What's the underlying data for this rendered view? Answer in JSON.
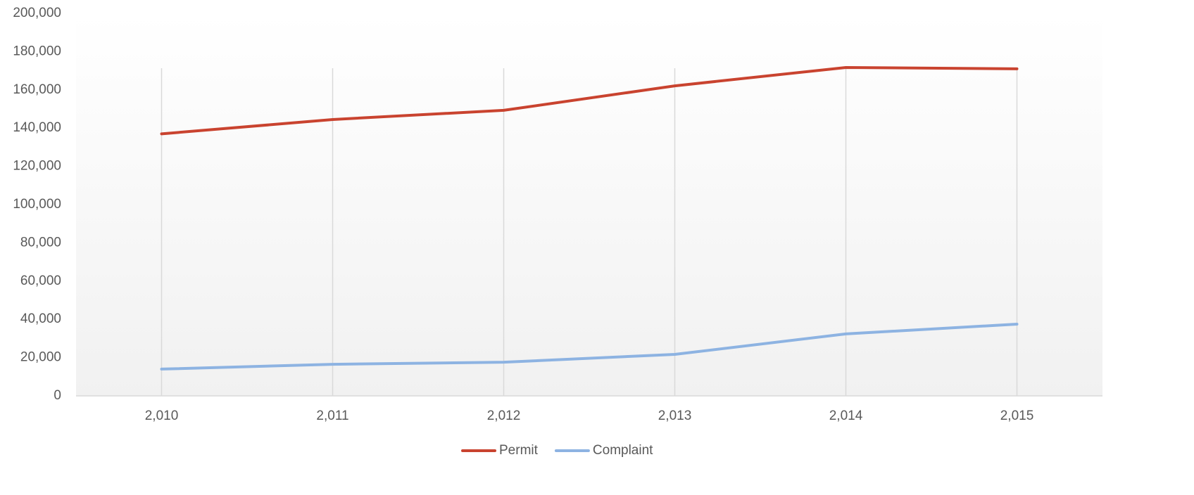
{
  "chart_data": {
    "type": "line",
    "categories": [
      "2,010",
      "2,011",
      "2,012",
      "2,013",
      "2,014",
      "2,015"
    ],
    "series": [
      {
        "name": "Permit",
        "color": "#c9432f",
        "values": [
          137000,
          144500,
          149300,
          162100,
          171700,
          171000
        ]
      },
      {
        "name": "Complaint",
        "color": "#8db3e2",
        "values": [
          14000,
          16500,
          17600,
          21700,
          32400,
          37500
        ]
      }
    ],
    "ylim": [
      0,
      200000
    ],
    "yticks": [
      0,
      {
        "value": 20000,
        "label": "20,000"
      },
      {
        "value": 40000,
        "label": "40,000"
      },
      {
        "value": 60000,
        "label": "60,000"
      },
      {
        "value": 80000,
        "label": "80,000"
      },
      {
        "value": 100000,
        "label": "100,000"
      },
      {
        "value": 120000,
        "label": "120,000"
      },
      {
        "value": 140000,
        "label": "140,000"
      },
      {
        "value": 160000,
        "label": "160,000"
      },
      {
        "value": 180000,
        "label": "180,000"
      },
      {
        "value": 200000,
        "label": "200,000"
      }
    ],
    "x_grid": true,
    "legend": "bottom"
  }
}
